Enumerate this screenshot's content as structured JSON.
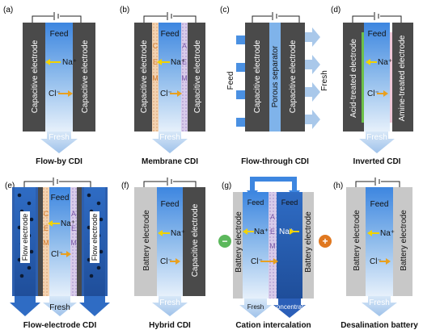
{
  "panels": {
    "a": {
      "letter": "(a)",
      "title": "Flow-by CDI",
      "feed": "Feed",
      "fresh": "Fresh",
      "left_electrode": "Capacitive electrode",
      "right_electrode": "Capacitive electrode",
      "na": "Na⁺",
      "cl": "Cl⁻"
    },
    "b": {
      "letter": "(b)",
      "title": "Membrane CDI",
      "feed": "Feed",
      "fresh": "Fresh",
      "left_electrode": "Capacitive electrode",
      "right_electrode": "Capacitive electrode",
      "left_membrane": [
        "C",
        "E",
        "M"
      ],
      "right_membrane": [
        "A",
        "E",
        "M"
      ],
      "na": "Na⁺",
      "cl": "Cl⁻"
    },
    "c": {
      "letter": "(c)",
      "title": "Flow-through CDI",
      "feed": "Feed",
      "fresh": "Fresh",
      "left_electrode": "Capacitive electrode",
      "separator": "Porous separator",
      "right_electrode": "Capacitive electrode"
    },
    "d": {
      "letter": "(d)",
      "title": "Inverted CDI",
      "feed": "Feed",
      "fresh": "Fresh",
      "left_electrode": "Acid-treated electrode",
      "right_electrode": "Amine-treated electrode",
      "na": "Na⁺",
      "cl": "Cl⁻"
    },
    "e": {
      "letter": "(e)",
      "title": "Flow-electrode CDI",
      "feed": "Feed",
      "fresh": "Fresh",
      "left_electrode": "Flow electrode",
      "right_electrode": "Flow electrode",
      "left_membrane": [
        "C",
        "E",
        "M"
      ],
      "right_membrane": [
        "A",
        "E",
        "M"
      ],
      "na": "Na⁺",
      "cl": "Cl⁻"
    },
    "f": {
      "letter": "(f)",
      "title": "Hybrid CDI",
      "feed": "Feed",
      "fresh": "Fresh",
      "left_electrode": "Battery electrode",
      "right_electrode": "Capacitive electrode",
      "na": "Na⁺",
      "cl": "Cl⁻"
    },
    "g": {
      "letter": "(g)",
      "title": "Cation intercalation",
      "feed_left": "Feed",
      "feed_right": "Feed",
      "fresh": "Fresh",
      "concentrate": "Concentrate",
      "left_electrode": "Battery electrode",
      "right_electrode": "Battery electrode",
      "membrane": [
        "A",
        "E",
        "M"
      ],
      "na_left": "Na⁺",
      "na_right": "Na⁺",
      "cl": "Cl⁻",
      "minus": "−",
      "plus": "+"
    },
    "h": {
      "letter": "(h)",
      "title": "Desalination battery",
      "feed": "Feed",
      "fresh": "Fresh",
      "left_electrode": "Battery electrode",
      "right_electrode": "Battery electrode",
      "na": "Na⁺",
      "cl": "Cl⁻"
    }
  },
  "colors": {
    "dark_electrode": "#4a4a4a",
    "battery_electrode": "#c8c8c8",
    "channel_top": "#4a90e2",
    "channel_bottom": "#e8f1fb",
    "arrow_fresh": "#a9c8ea",
    "na_arrow": "#f2d200",
    "cl_arrow": "#e8a020",
    "cem": "#f0c8a0",
    "aem": "#c8b8e0",
    "concentrate": "#2b5fb8",
    "minus_circle": "#5cb85c",
    "plus_circle": "#e07820"
  }
}
